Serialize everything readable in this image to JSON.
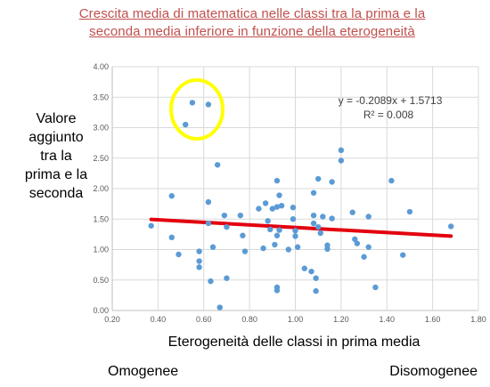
{
  "title_line1": "Crescita media di matematica nelle classi tra la prima e la",
  "title_line2": "seconda media inferiore in funzione della eterogeneità",
  "ylabel_lines": [
    "Valore",
    "aggiunto",
    "tra la",
    "prima e la",
    "seconda"
  ],
  "xlabel": "Eterogeneità delle classi in prima media",
  "left_end_label": "Omogenee",
  "right_end_label": "Disomogenee",
  "chart_data": {
    "type": "scatter",
    "xlim": [
      0.2,
      1.8
    ],
    "ylim": [
      0.0,
      4.0
    ],
    "xticks": [
      "0.20",
      "0.40",
      "0.60",
      "0.80",
      "1.00",
      "1.20",
      "1.40",
      "1.60",
      "1.80"
    ],
    "yticks": [
      "0.00",
      "0.50",
      "1.00",
      "1.50",
      "2.00",
      "2.50",
      "3.00",
      "3.50",
      "4.00"
    ],
    "grid": true,
    "points": [
      [
        0.37,
        1.39
      ],
      [
        0.46,
        1.88
      ],
      [
        0.46,
        1.2
      ],
      [
        0.49,
        0.92
      ],
      [
        0.52,
        3.05
      ],
      [
        0.55,
        3.41
      ],
      [
        0.58,
        0.97
      ],
      [
        0.58,
        0.81
      ],
      [
        0.58,
        0.71
      ],
      [
        0.62,
        3.38
      ],
      [
        0.62,
        1.78
      ],
      [
        0.62,
        1.43
      ],
      [
        0.63,
        0.48
      ],
      [
        0.64,
        1.04
      ],
      [
        0.66,
        2.39
      ],
      [
        0.67,
        0.05
      ],
      [
        0.69,
        1.56
      ],
      [
        0.7,
        1.37
      ],
      [
        0.7,
        0.53
      ],
      [
        0.76,
        1.56
      ],
      [
        0.77,
        1.23
      ],
      [
        0.78,
        0.97
      ],
      [
        0.84,
        1.67
      ],
      [
        0.86,
        1.02
      ],
      [
        0.87,
        1.76
      ],
      [
        0.88,
        1.47
      ],
      [
        0.89,
        1.33
      ],
      [
        0.9,
        1.67
      ],
      [
        0.91,
        1.08
      ],
      [
        0.92,
        2.13
      ],
      [
        0.92,
        1.7
      ],
      [
        0.92,
        1.23
      ],
      [
        0.92,
        0.38
      ],
      [
        0.92,
        0.33
      ],
      [
        0.93,
        1.89
      ],
      [
        0.93,
        1.32
      ],
      [
        0.94,
        1.72
      ],
      [
        0.97,
        1.0
      ],
      [
        0.99,
        1.69
      ],
      [
        0.99,
        1.5
      ],
      [
        1.0,
        1.31
      ],
      [
        1.0,
        1.22
      ],
      [
        1.01,
        1.04
      ],
      [
        1.04,
        0.69
      ],
      [
        1.07,
        0.64
      ],
      [
        1.08,
        1.93
      ],
      [
        1.08,
        1.56
      ],
      [
        1.08,
        1.43
      ],
      [
        1.09,
        0.53
      ],
      [
        1.09,
        0.32
      ],
      [
        1.1,
        2.16
      ],
      [
        1.1,
        1.37
      ],
      [
        1.11,
        1.27
      ],
      [
        1.12,
        1.54
      ],
      [
        1.14,
        1.07
      ],
      [
        1.14,
        1.01
      ],
      [
        1.16,
        2.11
      ],
      [
        1.16,
        1.51
      ],
      [
        1.2,
        2.63
      ],
      [
        1.2,
        2.46
      ],
      [
        1.25,
        1.61
      ],
      [
        1.26,
        1.17
      ],
      [
        1.27,
        1.1
      ],
      [
        1.3,
        0.88
      ],
      [
        1.32,
        1.04
      ],
      [
        1.32,
        1.54
      ],
      [
        1.35,
        0.38
      ],
      [
        1.42,
        2.13
      ],
      [
        1.47,
        0.91
      ],
      [
        1.5,
        1.62
      ],
      [
        1.68,
        1.38
      ]
    ],
    "trendline": {
      "slope": -0.2089,
      "intercept": 1.5713,
      "x_range": [
        0.37,
        1.68
      ],
      "equation": "y = -0.2089x + 1.5713",
      "r2": "R² = 0.008"
    },
    "highlight": {
      "center": [
        0.57,
        3.3
      ],
      "note": "yellow ellipse around outliers"
    },
    "colors": {
      "points": "#5b9bd5",
      "trendline": "#e3000f",
      "highlight": "#ffff00",
      "grid": "#d9d9d9"
    }
  }
}
